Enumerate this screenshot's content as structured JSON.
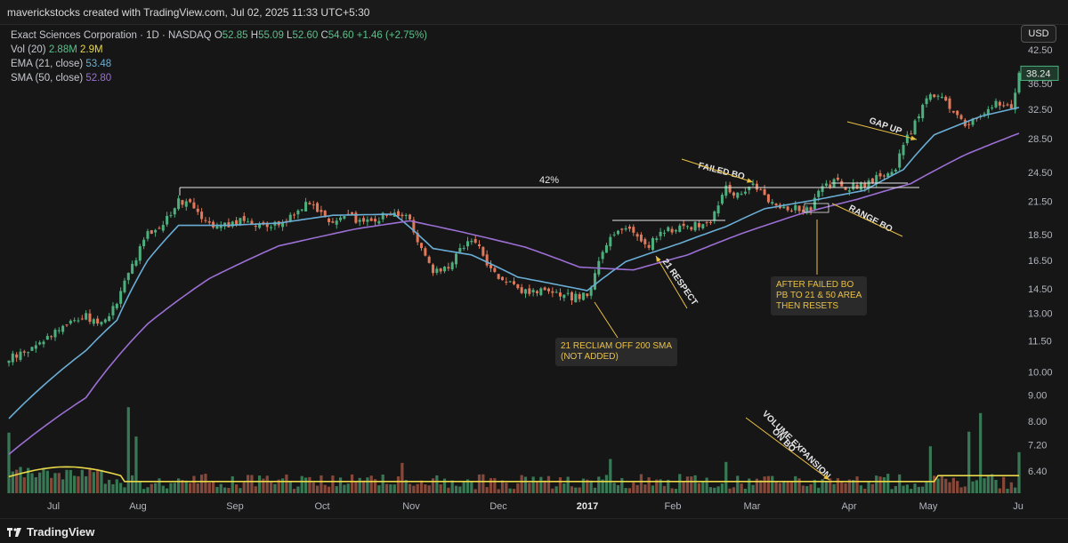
{
  "header": {
    "credit": "maverickstocks created with TradingView.com, Jul 02, 2025 11:33 UTC+5:30"
  },
  "legend": {
    "symbol": "Exact Sciences Corporation · 1D · NASDAQ",
    "open_label": "O",
    "open": "52.85",
    "high_label": "H",
    "high": "55.09",
    "low_label": "L",
    "low": "52.60",
    "close_label": "C",
    "close": "54.60",
    "change": "+1.46 (+2.75%)",
    "vol_label": "Vol (20)",
    "vol_value": "2.88M",
    "vol_avg": "2.9M",
    "ema_label": "EMA (21, close)",
    "ema_value": "53.48",
    "sma_label": "SMA (50, close)",
    "sma_value": "52.80"
  },
  "currency_button": "USD",
  "price_tag": "38.24",
  "colors": {
    "up": "#4caf7d",
    "down": "#e0785a",
    "ema": "#6aaed6",
    "sma": "#9b6fd4",
    "volume_avg": "#e8d84a",
    "annotation": "#e9c046"
  },
  "footer": {
    "brand": "TradingView"
  },
  "annotations": {
    "pct": "42%",
    "failed_bo": "FAILED BO",
    "gap_up": "GAP UP",
    "range_bo": "RANGE BO",
    "respect": "21 RESPECT",
    "volume_expansion": "VOLUME EXPANSION\nON BO",
    "reclaim": "21 RECLIAM OFF 200 SMA\n(NOT ADDED)",
    "after_failed": "AFTER FAILED BO\nPB TO 21 & 50 AREA\nTHEN RESETS"
  },
  "chart_data": {
    "type": "candlestick",
    "y_axis_scale": "log",
    "y_ticks": [
      "42.50",
      "36.50",
      "32.50",
      "28.50",
      "24.50",
      "21.50",
      "18.50",
      "16.50",
      "14.50",
      "13.00",
      "11.50",
      "10.00",
      "9.00",
      "8.00",
      "7.20",
      "6.40"
    ],
    "x_ticks": [
      "Jul",
      "Aug",
      "Sep",
      "Oct",
      "Nov",
      "Dec",
      "2017",
      "Jan",
      "Feb",
      "Mar",
      "Apr",
      "May",
      "Ju"
    ],
    "price_path": [
      [
        0,
        10.6
      ],
      [
        4,
        10.9
      ],
      [
        8,
        11.4
      ],
      [
        12,
        12.0
      ],
      [
        16,
        12.6
      ],
      [
        20,
        12.8
      ],
      [
        24,
        12.4
      ],
      [
        28,
        13.6
      ],
      [
        32,
        16.2
      ],
      [
        36,
        18.5
      ],
      [
        40,
        19.5
      ],
      [
        44,
        21.5
      ],
      [
        47,
        21.6
      ],
      [
        50,
        20.2
      ],
      [
        54,
        19.2
      ],
      [
        58,
        19.5
      ],
      [
        62,
        19.8
      ],
      [
        66,
        19.1
      ],
      [
        70,
        19.4
      ],
      [
        74,
        20.4
      ],
      [
        78,
        21.6
      ],
      [
        80,
        20.7
      ],
      [
        84,
        19.6
      ],
      [
        88,
        20.1
      ],
      [
        92,
        19.6
      ],
      [
        96,
        20.0
      ],
      [
        100,
        20.4
      ],
      [
        104,
        20.0
      ],
      [
        106,
        18.0
      ],
      [
        110,
        15.5
      ],
      [
        114,
        16.1
      ],
      [
        118,
        17.6
      ],
      [
        121,
        18.1
      ],
      [
        124,
        16.1
      ],
      [
        128,
        15.2
      ],
      [
        132,
        14.4
      ],
      [
        136,
        14.4
      ],
      [
        140,
        14.2
      ],
      [
        144,
        14.0
      ],
      [
        148,
        14.0
      ],
      [
        151,
        14.4
      ],
      [
        153,
        16.4
      ],
      [
        156,
        18.4
      ],
      [
        160,
        19.3
      ],
      [
        164,
        18.0
      ],
      [
        166,
        17.7
      ],
      [
        170,
        18.8
      ],
      [
        174,
        19.1
      ],
      [
        178,
        19.3
      ],
      [
        182,
        19.6
      ],
      [
        186,
        22.8
      ],
      [
        190,
        22.0
      ],
      [
        193,
        23.4
      ],
      [
        196,
        22.0
      ],
      [
        200,
        21.0
      ],
      [
        204,
        20.8
      ],
      [
        208,
        20.5
      ],
      [
        210,
        22.5
      ],
      [
        214,
        23.4
      ],
      [
        218,
        22.9
      ],
      [
        222,
        23.2
      ],
      [
        226,
        24.1
      ],
      [
        230,
        25.0
      ],
      [
        232,
        27.6
      ],
      [
        235,
        30.5
      ],
      [
        237,
        33.0
      ],
      [
        239,
        35.4
      ],
      [
        242,
        34.0
      ],
      [
        245,
        32.0
      ],
      [
        248,
        30.5
      ],
      [
        252,
        31.5
      ],
      [
        256,
        33.4
      ],
      [
        260,
        32.5
      ],
      [
        262,
        38.2
      ]
    ],
    "ema21_path": [
      [
        0,
        8.1
      ],
      [
        20,
        11.0
      ],
      [
        28,
        12.6
      ],
      [
        36,
        16.5
      ],
      [
        44,
        19.3
      ],
      [
        56,
        19.3
      ],
      [
        70,
        19.5
      ],
      [
        84,
        20.2
      ],
      [
        100,
        20.3
      ],
      [
        110,
        17.4
      ],
      [
        120,
        16.9
      ],
      [
        132,
        15.3
      ],
      [
        150,
        14.4
      ],
      [
        160,
        16.4
      ],
      [
        174,
        17.8
      ],
      [
        186,
        19.2
      ],
      [
        196,
        20.8
      ],
      [
        210,
        21.7
      ],
      [
        222,
        22.6
      ],
      [
        232,
        24.8
      ],
      [
        240,
        29.0
      ],
      [
        252,
        31.5
      ],
      [
        262,
        32.8
      ]
    ],
    "sma50_path": [
      [
        0,
        6.9
      ],
      [
        20,
        8.9
      ],
      [
        36,
        12.4
      ],
      [
        52,
        15.2
      ],
      [
        70,
        17.6
      ],
      [
        90,
        19.0
      ],
      [
        104,
        19.7
      ],
      [
        118,
        18.7
      ],
      [
        134,
        17.5
      ],
      [
        148,
        16.0
      ],
      [
        162,
        15.8
      ],
      [
        176,
        16.9
      ],
      [
        190,
        18.6
      ],
      [
        206,
        20.4
      ],
      [
        220,
        21.7
      ],
      [
        234,
        23.3
      ],
      [
        248,
        26.5
      ],
      [
        262,
        29.2
      ]
    ],
    "volume_spikes": [
      [
        0,
        0.62
      ],
      [
        31,
        0.88
      ],
      [
        33,
        0.58
      ],
      [
        102,
        0.31
      ],
      [
        156,
        0.35
      ],
      [
        186,
        0.32
      ],
      [
        239,
        0.48
      ],
      [
        249,
        0.63
      ],
      [
        252,
        0.82
      ],
      [
        262,
        0.42
      ]
    ]
  }
}
